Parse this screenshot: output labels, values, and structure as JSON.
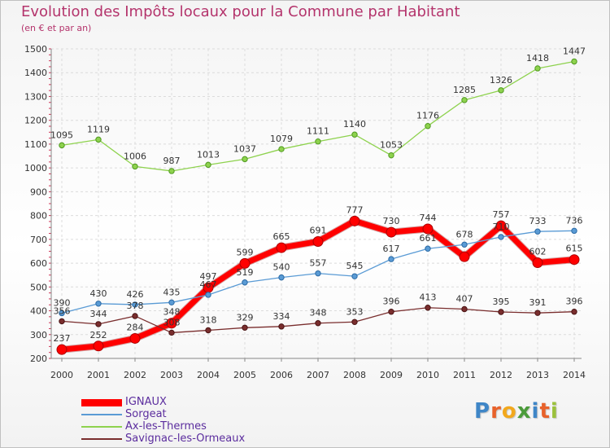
{
  "title": "Evolution des Impôts locaux pour la Commune par Habitant",
  "subtitle": "(en € et par an)",
  "logo": {
    "text": "Proxiti",
    "letters": [
      {
        "ch": "P",
        "color": "#3f86c7"
      },
      {
        "ch": "r",
        "color": "#e8622b"
      },
      {
        "ch": "o",
        "color": "#f2a81d"
      },
      {
        "ch": "x",
        "color": "#4b9b3a"
      },
      {
        "ch": "i",
        "color": "#3f86c7"
      },
      {
        "ch": "t",
        "color": "#e8622b"
      },
      {
        "ch": "i",
        "color": "#9bc13c"
      }
    ]
  },
  "chart_data": {
    "type": "line",
    "title": "Evolution des Impôts locaux pour la Commune par Habitant",
    "subtitle": "(en € et par an)",
    "xlabel": "",
    "ylabel": "",
    "ylim": [
      200,
      1500
    ],
    "yticks": [
      200,
      300,
      400,
      500,
      600,
      700,
      800,
      900,
      1000,
      1100,
      1200,
      1300,
      1400,
      1500
    ],
    "grid": true,
    "legend_position": "bottom-left",
    "categories": [
      "2000",
      "2001",
      "2002",
      "2003",
      "2004",
      "2005",
      "2006",
      "2007",
      "2008",
      "2009",
      "2010",
      "2011",
      "2012",
      "2013",
      "2014"
    ],
    "series": [
      {
        "name": "IGNAUX",
        "color": "#ff0000",
        "values": [
          237,
          252,
          284,
          348,
          497,
          599,
          665,
          691,
          777,
          730,
          744,
          627,
          757,
          602,
          615
        ],
        "labels": [
          "237",
          "252",
          "284",
          "348",
          "497",
          "599",
          "665",
          "691",
          "777",
          "730",
          "744",
          "",
          "757",
          "602",
          "615"
        ]
      },
      {
        "name": "Sorgeat",
        "color": "#5a9bd5",
        "values": [
          390,
          430,
          426,
          435,
          467,
          519,
          540,
          557,
          545,
          617,
          661,
          678,
          710,
          733,
          736
        ],
        "labels": [
          "390",
          "430",
          "426",
          "435",
          "467",
          "519",
          "540",
          "557",
          "545",
          "617",
          "661",
          "678",
          "710",
          "733",
          "736"
        ]
      },
      {
        "name": "Ax-les-Thermes",
        "color": "#8ed24e",
        "values": [
          1095,
          1119,
          1006,
          987,
          1013,
          1037,
          1079,
          1111,
          1140,
          1053,
          1176,
          1285,
          1326,
          1418,
          1447
        ],
        "labels": [
          "1095",
          "1119",
          "1006",
          "987",
          "1013",
          "1037",
          "1079",
          "1111",
          "1140",
          "1053",
          "1176",
          "1285",
          "1326",
          "1418",
          "1447"
        ]
      },
      {
        "name": "Savignac-les-Ormeaux",
        "color": "#7a2e2e",
        "values": [
          356,
          344,
          378,
          308,
          318,
          329,
          334,
          348,
          353,
          396,
          413,
          407,
          395,
          391,
          396
        ],
        "labels": [
          "356",
          "344",
          "378",
          "308",
          "318",
          "329",
          "334",
          "348",
          "353",
          "396",
          "413",
          "407",
          "395",
          "391",
          "396"
        ]
      }
    ]
  }
}
